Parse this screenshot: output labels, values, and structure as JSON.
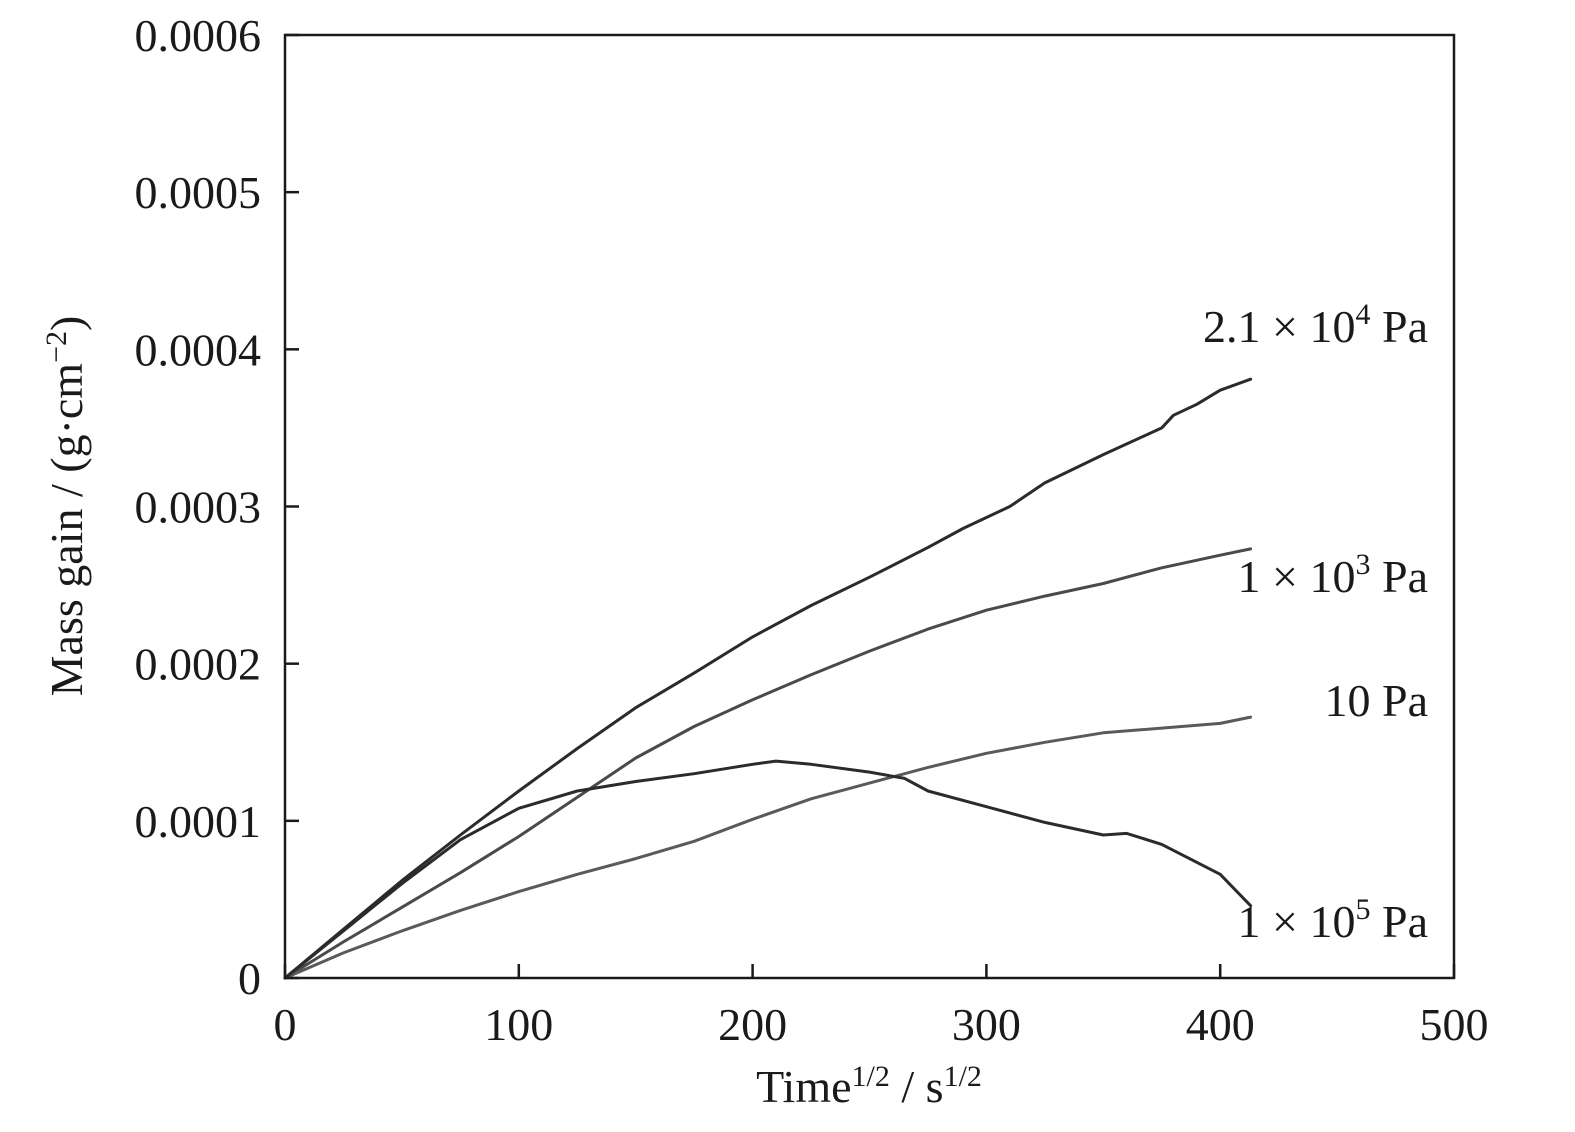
{
  "chart_data": {
    "type": "line",
    "title": "",
    "xlabel": {
      "base": "Time",
      "sup": "1/2",
      "sep": " / s",
      "sup2": "1/2"
    },
    "ylabel": {
      "base": "Mass gain / (g·cm",
      "sup": "−2",
      "end": ")"
    },
    "xlim": [
      0,
      500
    ],
    "ylim": [
      0,
      0.0006
    ],
    "xticks": [
      0,
      100,
      200,
      300,
      400,
      500
    ],
    "yticks": [
      0,
      0.0001,
      0.0002,
      0.0003,
      0.0004,
      0.0005,
      0.0006
    ],
    "xtick_labels": [
      "0",
      "100",
      "200",
      "300",
      "400",
      "500"
    ],
    "ytick_labels": [
      "0",
      "0.0001",
      "0.0002",
      "0.0003",
      "0.0004",
      "0.0005",
      "0.0006"
    ],
    "grid": false,
    "series": [
      {
        "name": {
          "base": "2.1 × 10",
          "sup": "4",
          "end": " Pa"
        },
        "color": "#2b2b2b",
        "x": [
          0,
          25,
          50,
          75,
          100,
          125,
          150,
          175,
          200,
          225,
          250,
          275,
          290,
          310,
          325,
          350,
          375,
          380,
          390,
          400,
          413
        ],
        "y": [
          0,
          3.1e-05,
          6.2e-05,
          9.1e-05,
          0.000119,
          0.000146,
          0.000172,
          0.000194,
          0.000217,
          0.000237,
          0.000255,
          0.000274,
          0.000286,
          0.0003,
          0.000315,
          0.000333,
          0.00035,
          0.000358,
          0.000365,
          0.000374,
          0.000381
        ]
      },
      {
        "name": {
          "base": "1 × 10",
          "sup": "3",
          "end": " Pa"
        },
        "color": "#4a4a4a",
        "x": [
          0,
          25,
          50,
          75,
          100,
          125,
          150,
          175,
          200,
          225,
          250,
          275,
          300,
          325,
          350,
          375,
          400,
          413
        ],
        "y": [
          0,
          2.3e-05,
          4.5e-05,
          6.7e-05,
          9e-05,
          0.000115,
          0.00014,
          0.00016,
          0.000177,
          0.000193,
          0.000208,
          0.000222,
          0.000234,
          0.000243,
          0.000251,
          0.000261,
          0.000269,
          0.000273
        ]
      },
      {
        "name": {
          "base": "10 Pa",
          "sup": "",
          "end": ""
        },
        "color": "#5a5a5a",
        "x": [
          0,
          25,
          50,
          75,
          100,
          125,
          150,
          175,
          200,
          225,
          250,
          275,
          300,
          325,
          350,
          375,
          400,
          413
        ],
        "y": [
          0,
          1.6e-05,
          3e-05,
          4.3e-05,
          5.5e-05,
          6.6e-05,
          7.6e-05,
          8.7e-05,
          0.000101,
          0.000114,
          0.000124,
          0.000134,
          0.000143,
          0.00015,
          0.000156,
          0.000159,
          0.000162,
          0.000166
        ]
      },
      {
        "name": {
          "base": "1 × 10",
          "sup": "5",
          "end": " Pa"
        },
        "color": "#2b2b2b",
        "x": [
          0,
          25,
          50,
          75,
          100,
          125,
          150,
          175,
          200,
          210,
          225,
          250,
          265,
          275,
          300,
          325,
          350,
          360,
          375,
          400,
          413
        ],
        "y": [
          0,
          3e-05,
          6e-05,
          8.8e-05,
          0.000108,
          0.000119,
          0.000125,
          0.00013,
          0.000136,
          0.000138,
          0.000136,
          0.000131,
          0.000127,
          0.000119,
          0.000109,
          9.9e-05,
          9.1e-05,
          9.2e-05,
          8.5e-05,
          6.6e-05,
          4.6e-05
        ]
      }
    ],
    "series_label_positions": [
      "right"
    ]
  }
}
